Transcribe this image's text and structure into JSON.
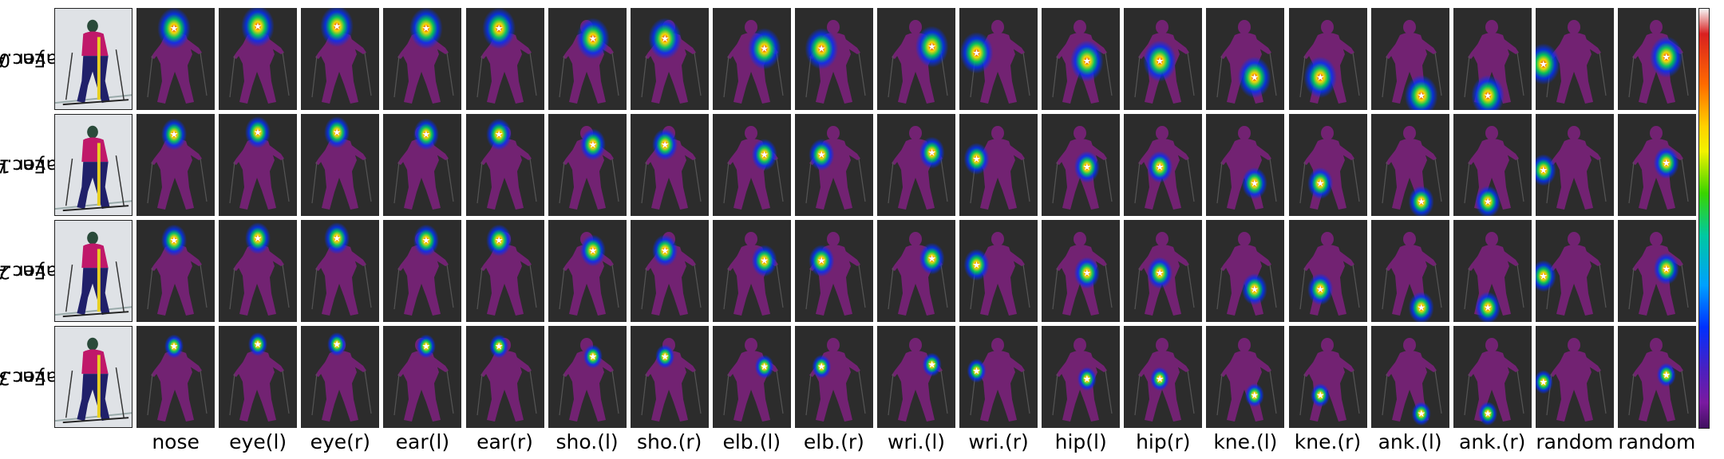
{
  "rows": [
    {
      "label_line1": "Enc.Att.",
      "label_line2": "Layer 0"
    },
    {
      "label_line1": "Enc.Att.",
      "label_line2": "Layer 1"
    },
    {
      "label_line1": "Enc.Att.",
      "label_line2": "Layer 2"
    },
    {
      "label_line1": "Enc.Att.",
      "label_line2": "Layer 3"
    }
  ],
  "columns": [
    "nose",
    "eye(l)",
    "eye(r)",
    "ear(l)",
    "ear(r)",
    "sho.(l)",
    "sho.(r)",
    "elb.(l)",
    "elb.(r)",
    "wri.(l)",
    "wri.(r)",
    "hip(l)",
    "hip(r)",
    "kne.(l)",
    "kne.(r)",
    "ank.(l)",
    "ank.(r)",
    "random",
    "random"
  ],
  "colors": {
    "background": "#2c2c2c",
    "body_overlay": "#8a1f8a",
    "low": "#0030ff",
    "mid": "#00d060",
    "high": "#ffe000",
    "peak": "#e01010",
    "star": "#ffffff"
  },
  "colorbar": {
    "low_color": "#401060",
    "high_color": "#f5f5f5"
  }
}
